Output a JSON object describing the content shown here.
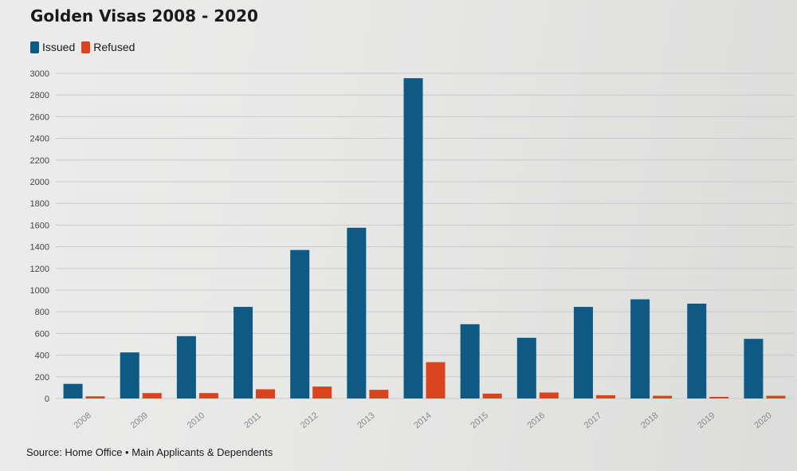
{
  "title": "Golden Visas 2008 - 2020",
  "source": "Source: Home Office • Main Applicants & Dependents",
  "legend": [
    {
      "label": "Issued",
      "color": "#0e5a84"
    },
    {
      "label": "Refused",
      "color": "#d9441f"
    }
  ],
  "chart_data": {
    "type": "bar",
    "title": "Golden Visas 2008 - 2020",
    "xlabel": "",
    "ylabel": "",
    "ylim": [
      0,
      3000
    ],
    "yticks": [
      0,
      200,
      400,
      600,
      800,
      1000,
      1200,
      1400,
      1600,
      1800,
      2000,
      2200,
      2400,
      2600,
      2800,
      3000
    ],
    "grid": true,
    "legend_position": "top-left",
    "categories": [
      "2008",
      "2009",
      "2010",
      "2011",
      "2012",
      "2013",
      "2014",
      "2015",
      "2016",
      "2017",
      "2018",
      "2019",
      "2020"
    ],
    "series": [
      {
        "name": "Issued",
        "color": "#0e5a84",
        "values": [
          135,
          425,
          575,
          845,
          1370,
          1575,
          2955,
          685,
          560,
          845,
          915,
          875,
          550
        ]
      },
      {
        "name": "Refused",
        "color": "#d9441f",
        "values": [
          20,
          50,
          50,
          85,
          110,
          80,
          335,
          45,
          55,
          30,
          25,
          15,
          25
        ]
      }
    ]
  }
}
